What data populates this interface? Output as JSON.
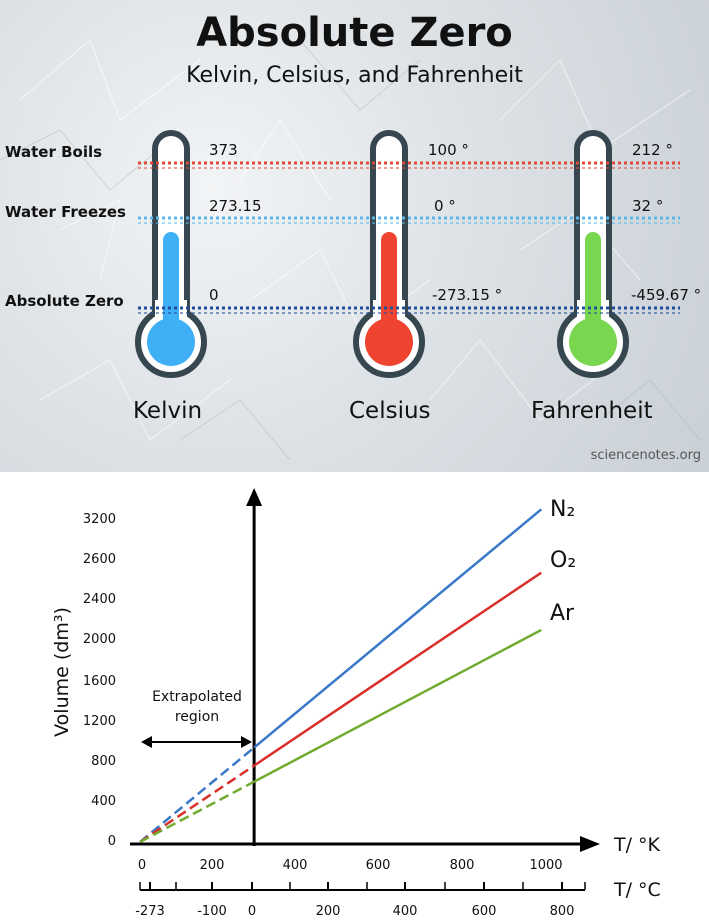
{
  "header": {
    "title": "Absolute Zero",
    "subtitle": "Kelvin, Celsius, and Fahrenheit",
    "credit": "sciencenotes.org"
  },
  "rows": [
    {
      "label": "Water Boils",
      "color": "#e24a35"
    },
    {
      "label": "Water Freezes",
      "color": "#5bb8e8"
    },
    {
      "label": "Absolute Zero",
      "color": "#1f4f9a"
    }
  ],
  "thermometers": [
    {
      "name": "Kelvin",
      "color": "#3fb0f5",
      "values": [
        "373",
        "273.15",
        "0"
      ]
    },
    {
      "name": "Celsius",
      "color": "#ee4430",
      "values": [
        "100 °",
        "0 °",
        "-273.15 °"
      ]
    },
    {
      "name": "Fahrenheit",
      "color": "#79d64f",
      "values": [
        "212 °",
        "32 °",
        "-459.67 °"
      ]
    }
  ],
  "chart_data": {
    "type": "line",
    "ylabel": "Volume (dm³)",
    "ytick_labels": [
      "0",
      "400",
      "800",
      "1200",
      "1600",
      "2000",
      "2400",
      "2600",
      "3200"
    ],
    "xlabel_kelvin": "T/ °K",
    "xticks_kelvin": [
      "0",
      "200",
      "400",
      "600",
      "800",
      "1000"
    ],
    "xlabel_celsius": "T/ °C",
    "xticks_celsius": [
      "-273",
      "-100",
      "0",
      "200",
      "400",
      "600",
      "800"
    ],
    "annotation": [
      "Extrapolated",
      "region"
    ],
    "series": [
      {
        "name": "N₂",
        "color": "#3a78c8",
        "x": [
          0,
          273,
          960
        ],
        "y": [
          0,
          940,
          3310
        ]
      },
      {
        "name": "O₂",
        "color": "#d9302c",
        "x": [
          0,
          273,
          960
        ],
        "y": [
          0,
          760,
          2680
        ]
      },
      {
        "name": "Ar",
        "color": "#6fab2f",
        "x": [
          0,
          273,
          960
        ],
        "y": [
          0,
          600,
          2110
        ]
      }
    ],
    "colors": {
      "axis": "#000000"
    }
  }
}
